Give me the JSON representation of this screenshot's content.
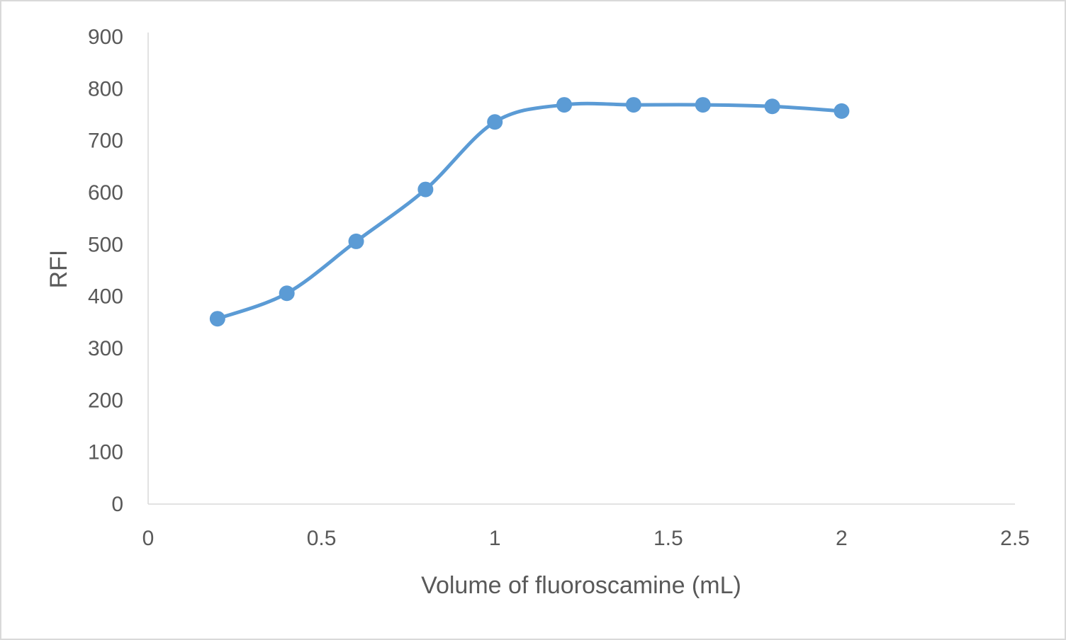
{
  "chart_data": {
    "type": "line",
    "title": "",
    "xlabel": "Volume of fluoroscamine (mL)",
    "ylabel": "RFI",
    "xlim": [
      0,
      2.5
    ],
    "ylim": [
      0,
      900
    ],
    "x_ticks": [
      "0",
      "0.5",
      "1",
      "1.5",
      "2",
      "2.5"
    ],
    "y_ticks": [
      "0",
      "100",
      "200",
      "300",
      "400",
      "500",
      "600",
      "700",
      "800",
      "900"
    ],
    "grid": false,
    "smooth": true,
    "markers": true,
    "legend": "none",
    "series": [
      {
        "color": "#5b9bd5",
        "x": [
          0.2,
          0.4,
          0.6,
          0.8,
          1.0,
          1.2,
          1.4,
          1.6,
          1.8,
          2.0
        ],
        "y": [
          357,
          406,
          506,
          606,
          736,
          769,
          769,
          769,
          766,
          757
        ]
      }
    ]
  }
}
